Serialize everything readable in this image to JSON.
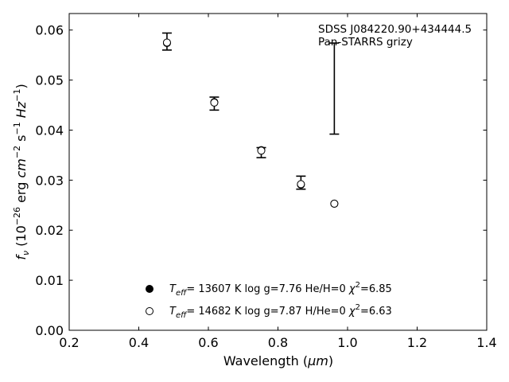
{
  "chart_data": {
    "type": "scatter",
    "xlabel_prefix": "Wavelength (",
    "xlabel_unit": "μm",
    "xlabel_suffix": ")",
    "ylabel": {
      "f": "f",
      "nu": "ν",
      "open": " (10",
      "exp1": "−26",
      "erg": " erg ",
      "cm": "cm",
      "exp2": "−2",
      "s": " s",
      "exp3": "−1",
      "hz": " Hz",
      "exp4": "−1",
      "close": ")"
    },
    "xlim": [
      0.2,
      1.4
    ],
    "ylim": [
      0.0,
      0.0633
    ],
    "xticks": [
      "0.2",
      "0.4",
      "0.6",
      "0.8",
      "1.0",
      "1.2",
      "1.4"
    ],
    "yticks": [
      "0.00",
      "0.01",
      "0.02",
      "0.03",
      "0.04",
      "0.05",
      "0.06"
    ],
    "annotation": [
      "SDSS J084220.90+434444.5",
      "Pan-STARRS grizy"
    ],
    "observed": [
      {
        "x": 0.481,
        "y": 0.0577,
        "err": 0.0017
      },
      {
        "x": 0.617,
        "y": 0.0453,
        "err": 0.0013
      },
      {
        "x": 0.752,
        "y": 0.0355,
        "err": 0.001
      },
      {
        "x": 0.866,
        "y": 0.0295,
        "err": 0.0013
      },
      {
        "x": 0.962,
        "y": 0.0483,
        "err": 0.0091
      }
    ],
    "series": [
      {
        "name": "Teff=13607 K log g=7.76 He/H=0 χ2=6.85",
        "marker": "filled",
        "x": [
          0.481,
          0.617,
          0.752,
          0.866,
          0.962
        ],
        "y": [
          0.0574,
          0.0456,
          0.036,
          0.0291,
          0.0253
        ]
      },
      {
        "name": "Teff=14682 K log g=7.87 H/He=0 χ2=6.63",
        "marker": "open",
        "x": [
          0.481,
          0.617,
          0.752,
          0.866,
          0.962
        ],
        "y": [
          0.0575,
          0.0455,
          0.0359,
          0.0292,
          0.0253
        ]
      }
    ],
    "legend": [
      {
        "T": "T",
        "sub": "eff",
        "rest": "= 13607 K  log g=7.76  He/H=0  ",
        "chi": "χ",
        "sup": "2",
        "val": "=6.85"
      },
      {
        "T": "T",
        "sub": "eff",
        "rest": "= 14682 K  log g=7.87  H/He=0  ",
        "chi": "χ",
        "sup": "2",
        "val": "=6.63"
      }
    ],
    "legend_placement": "lower-center",
    "grid": false
  }
}
